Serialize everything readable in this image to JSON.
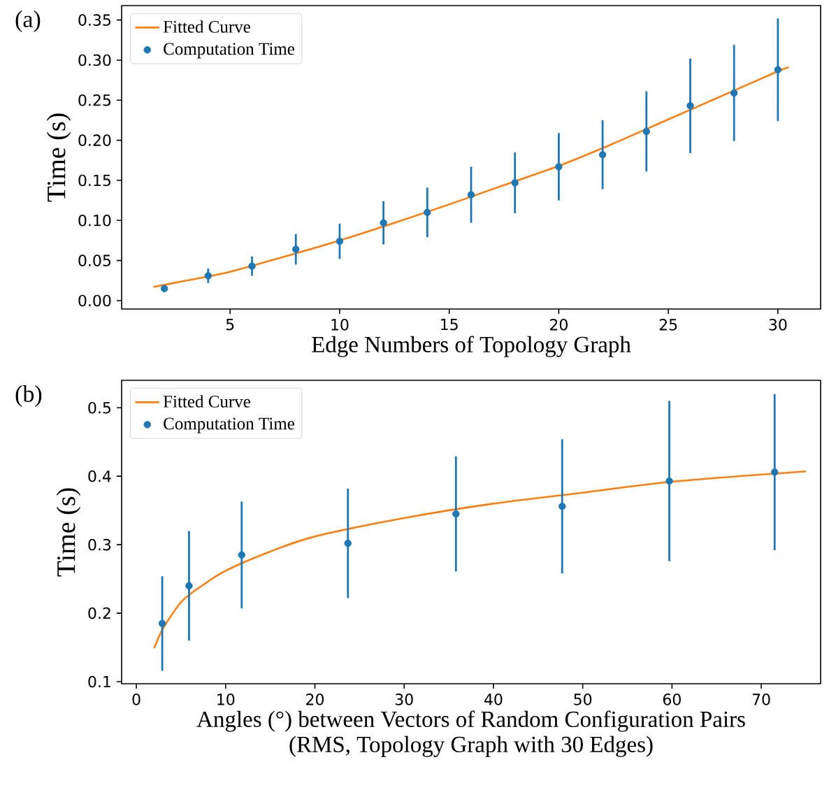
{
  "chart_data": [
    {
      "type": "scatter",
      "xlabel": "Edge Numbers of Topology Graph",
      "ylabel": "Time (s)",
      "annotations": [
        "(a)"
      ],
      "legend": "top left",
      "marker": "circle",
      "xlim": [
        0.05,
        31.95
      ],
      "ylim": [
        -0.0105,
        0.368
      ],
      "xticks": [
        5,
        10,
        15,
        20,
        25,
        30
      ],
      "yticks": [
        {
          "value": 0,
          "label": "0.00"
        },
        {
          "value": 0.05,
          "label": "0.05"
        },
        {
          "value": 0.1,
          "label": "0.10"
        },
        {
          "value": 0.15,
          "label": "0.15"
        },
        {
          "value": 0.2,
          "label": "0.20"
        },
        {
          "value": 0.25,
          "label": "0.25"
        },
        {
          "value": 0.3,
          "label": "0.30"
        },
        {
          "value": 0.35,
          "label": "0.35"
        }
      ],
      "series": [
        {
          "name": "Fitted Curve",
          "type": "line",
          "marker": "none",
          "color": "#ff7f0e",
          "x": [
            1.5,
            3,
            5,
            7.5,
            10,
            12.5,
            15,
            17.5,
            20,
            22.5,
            25,
            27.5,
            30,
            30.5
          ],
          "values": [
            0.017,
            0.025,
            0.036,
            0.055,
            0.075,
            0.097,
            0.12,
            0.144,
            0.168,
            0.196,
            0.226,
            0.256,
            0.286,
            0.291
          ]
        },
        {
          "name": "Computation Time",
          "color": "#1f77b4",
          "x": [
            2,
            4,
            6,
            8,
            10,
            12,
            14,
            16,
            18,
            20,
            22,
            24,
            26,
            28,
            30
          ],
          "values": [
            0.015,
            0.031,
            0.043,
            0.064,
            0.074,
            0.097,
            0.11,
            0.132,
            0.147,
            0.167,
            0.182,
            0.211,
            0.243,
            0.259,
            0.288
          ],
          "errors": [
            0.003,
            0.009,
            0.012,
            0.019,
            0.022,
            0.027,
            0.031,
            0.035,
            0.038,
            0.042,
            0.043,
            0.05,
            0.059,
            0.06,
            0.064
          ]
        }
      ]
    },
    {
      "type": "scatter",
      "xlabel": "Angles (°) between Vectors of Random Configuration Pairs",
      "subtitle": "(RMS, Topology Graph with 30 Edges)",
      "ylabel": "Time (s)",
      "annotations": [
        "(b)"
      ],
      "legend": "top left",
      "marker": "circle",
      "xlim": [
        -1.65,
        76.65
      ],
      "ylim": [
        0.097,
        0.54
      ],
      "xticks": [
        0,
        10,
        20,
        30,
        40,
        50,
        60,
        70
      ],
      "yticks": [
        0.1,
        0.2,
        0.3,
        0.4,
        0.5
      ],
      "series": [
        {
          "name": "Fitted Curve",
          "type": "line",
          "marker": "none",
          "color": "#ff7f0e",
          "x": [
            2,
            3,
            5,
            7,
            10,
            15,
            20,
            30,
            40,
            50,
            60,
            75
          ],
          "values": [
            0.149,
            0.178,
            0.216,
            0.237,
            0.262,
            0.29,
            0.312,
            0.339,
            0.36,
            0.376,
            0.392,
            0.407
          ]
        },
        {
          "name": "Computation Time",
          "color": "#1f77b4",
          "x": [
            2.9,
            5.9,
            11.8,
            23.7,
            35.8,
            47.7,
            59.7,
            71.5
          ],
          "values": [
            0.185,
            0.24,
            0.285,
            0.302,
            0.345,
            0.356,
            0.393,
            0.406
          ],
          "errors": [
            0.069,
            0.08,
            0.078,
            0.08,
            0.084,
            0.098,
            0.117,
            0.114
          ]
        }
      ]
    }
  ]
}
